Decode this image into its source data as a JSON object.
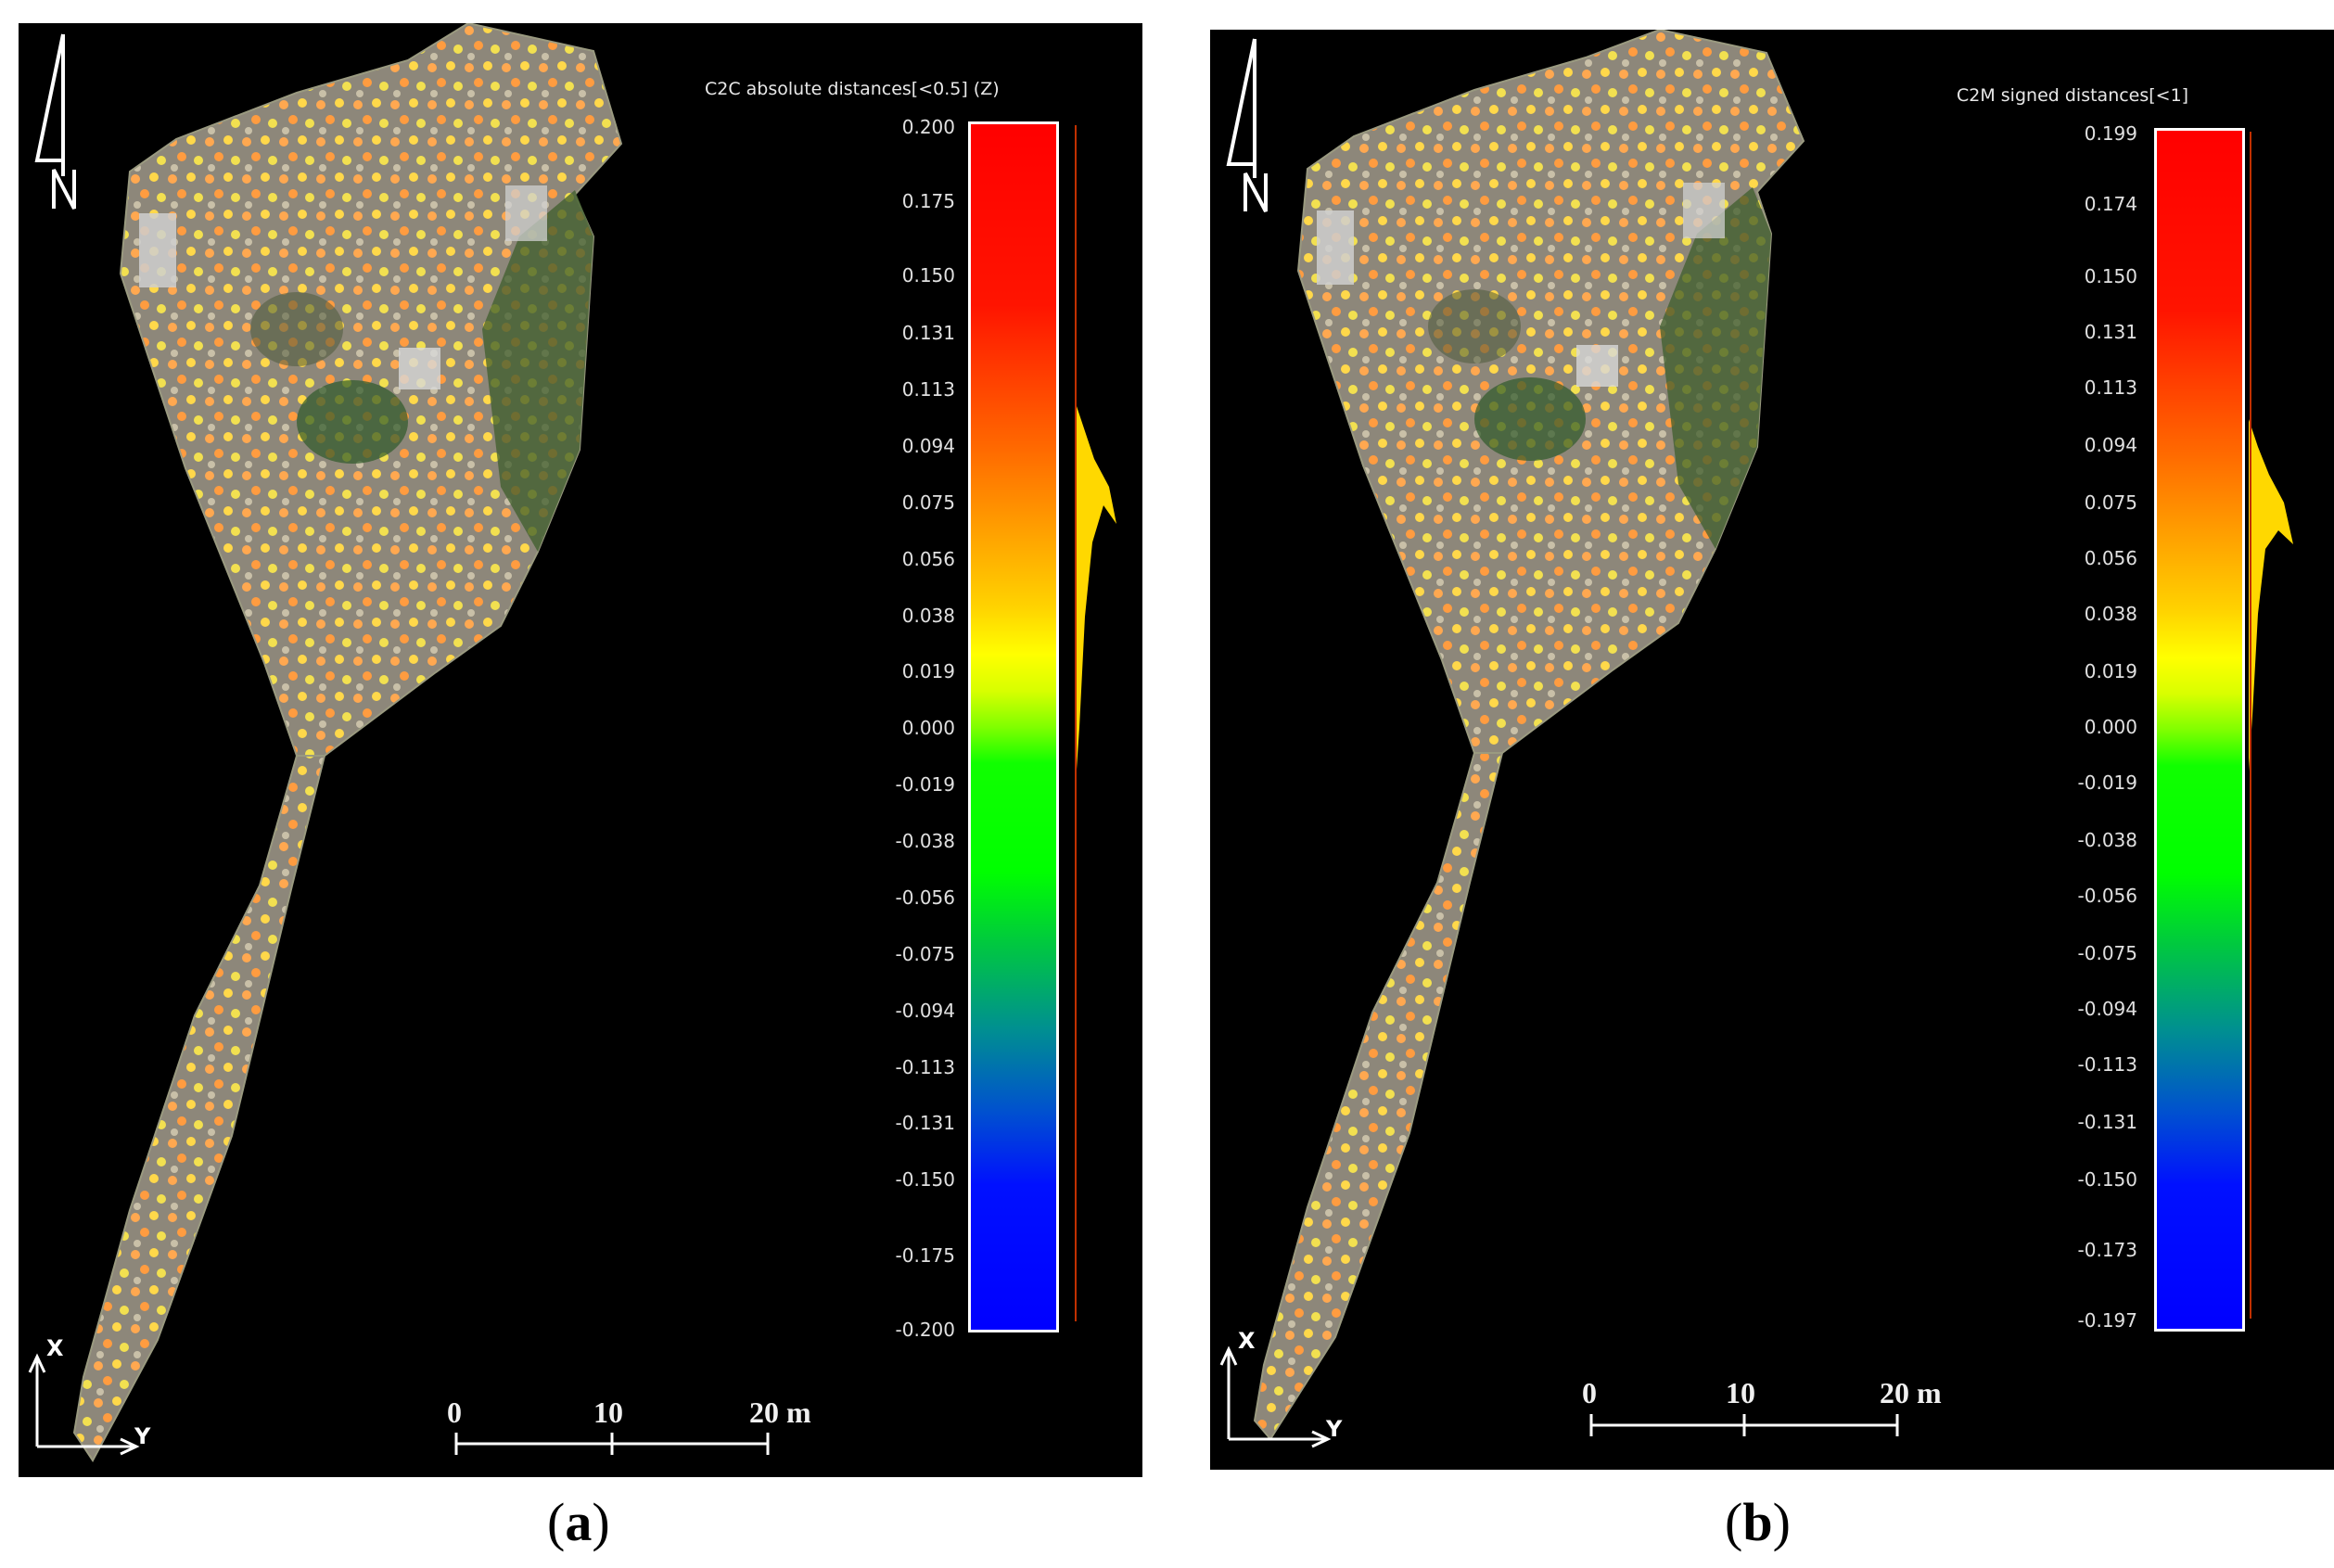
{
  "panels": [
    {
      "label": "a",
      "colorbar_title": "C2C absolute distances[<0.5] (Z)",
      "colorbar_ticks": [
        "0.200",
        "0.175",
        "0.150",
        "0.131",
        "0.113",
        "0.094",
        "0.075",
        "0.056",
        "0.038",
        "0.019",
        "0.000",
        "-0.019",
        "-0.038",
        "-0.056",
        "-0.075",
        "-0.094",
        "-0.113",
        "-0.131",
        "-0.150",
        "-0.175",
        "-0.200"
      ],
      "scale_bar": {
        "labels": [
          "0",
          "10",
          "20 m"
        ]
      },
      "axes": {
        "x": "X",
        "y": "Y"
      },
      "north_icon": "north-arrow-icon"
    },
    {
      "label": "b",
      "colorbar_title": "C2M signed distances[<1]",
      "colorbar_ticks": [
        "0.199",
        "0.174",
        "0.150",
        "0.131",
        "0.113",
        "0.094",
        "0.075",
        "0.056",
        "0.038",
        "0.019",
        "0.000",
        "-0.019",
        "-0.038",
        "-0.056",
        "-0.075",
        "-0.094",
        "-0.113",
        "-0.131",
        "-0.150",
        "-0.173",
        "-0.197"
      ],
      "scale_bar": {
        "labels": [
          "0",
          "10",
          "20 m"
        ]
      },
      "axes": {
        "x": "X",
        "y": "Y"
      },
      "north_icon": "north-arrow-icon"
    }
  ],
  "colors": {
    "background": "#000000",
    "terrain_gray": "#8a8478",
    "vegetation_green": "#4a6a30",
    "point_orange": "#ffa040",
    "point_yellow": "#ffe050"
  }
}
